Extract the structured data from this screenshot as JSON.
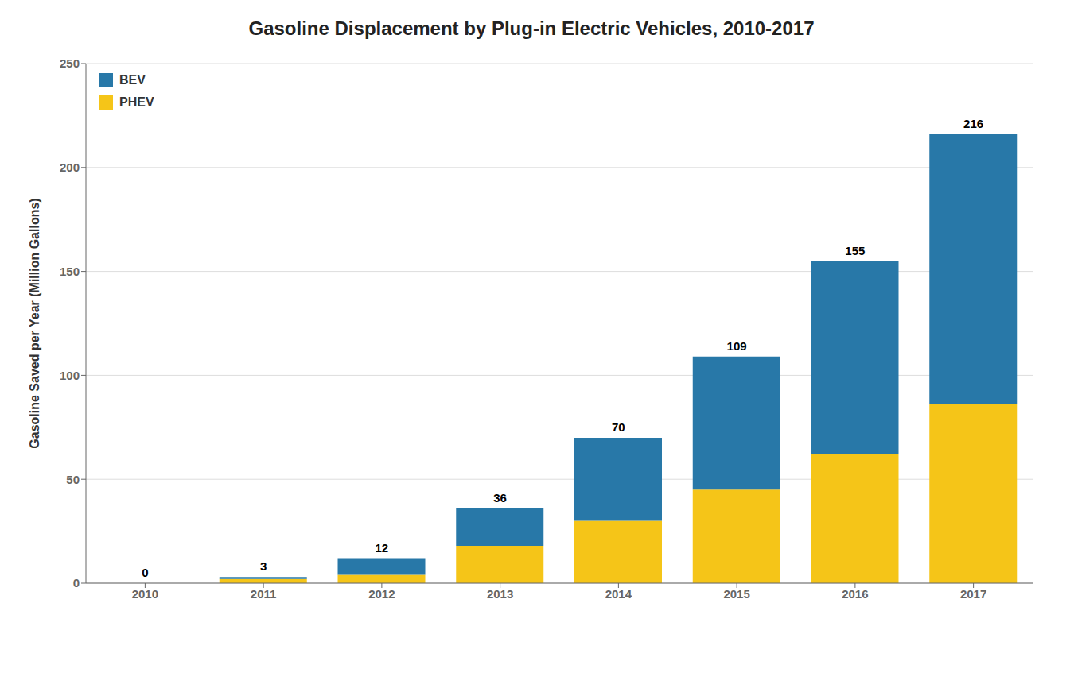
{
  "chart_data": {
    "type": "bar",
    "title": "Gasoline Displacement by Plug-in Electric Vehicles, 2010-2017",
    "ylabel": "Gasoline Saved per Year (Million Gallons)",
    "categories": [
      "2010",
      "2011",
      "2012",
      "2013",
      "2014",
      "2015",
      "2016",
      "2017"
    ],
    "series": [
      {
        "name": "PHEV",
        "color": "#F5C518",
        "values": [
          0,
          2,
          4,
          18,
          30,
          45,
          62,
          86
        ]
      },
      {
        "name": "BEV",
        "color": "#2878A8",
        "values": [
          0,
          1,
          8,
          18,
          40,
          64,
          93,
          130
        ]
      }
    ],
    "totals": [
      0,
      3,
      12,
      36,
      70,
      109,
      155,
      216
    ],
    "stacked": true,
    "ylim": [
      0,
      250
    ],
    "yticks": [
      0,
      50,
      100,
      150,
      200,
      250
    ],
    "grid": true,
    "legend": "upper left"
  }
}
